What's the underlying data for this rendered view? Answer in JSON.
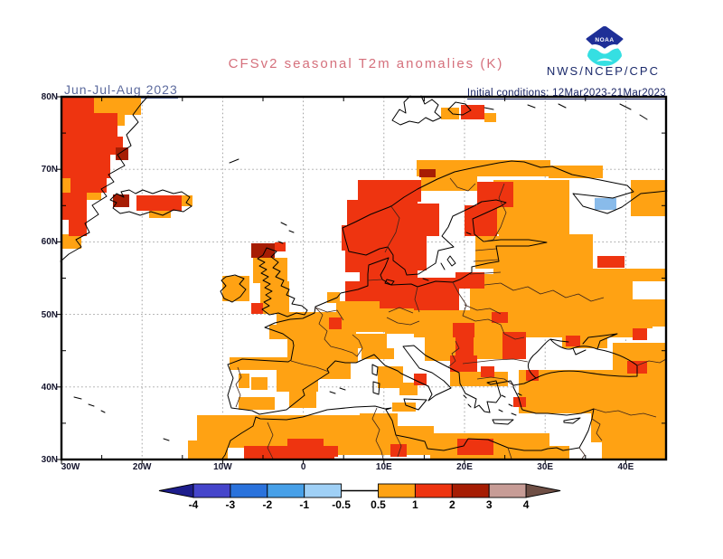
{
  "header": {
    "title": "CFSv2 seasonal T2m anomalies (K)",
    "period": "Jun-Jul-Aug 2023",
    "init_conditions": "Initial conditions: 12Mar2023-21Mar2023",
    "agency": "NWS/NCEP/CPC",
    "noaa_logo_text": "NOAA"
  },
  "map": {
    "lat_ticks": [
      {
        "label": "80N",
        "lat": 80
      },
      {
        "label": "70N",
        "lat": 70
      },
      {
        "label": "60N",
        "lat": 60
      },
      {
        "label": "50N",
        "lat": 50
      },
      {
        "label": "40N",
        "lat": 40
      },
      {
        "label": "30N",
        "lat": 30
      }
    ],
    "lon_ticks": [
      {
        "label": "30W",
        "lon": -30
      },
      {
        "label": "20W",
        "lon": -20
      },
      {
        "label": "10W",
        "lon": -10
      },
      {
        "label": "0",
        "lon": 0
      },
      {
        "label": "10E",
        "lon": 10
      },
      {
        "label": "20E",
        "lon": 20
      },
      {
        "label": "30E",
        "lon": 30
      },
      {
        "label": "40E",
        "lon": 40
      }
    ],
    "cells": [
      [
        "o",
        36,
        0,
        52,
        20
      ],
      [
        "o",
        54,
        20,
        16,
        12
      ],
      [
        "o",
        0,
        90,
        10,
        16
      ],
      [
        "o",
        28,
        104,
        16,
        10
      ],
      [
        "o",
        0,
        152,
        22,
        16
      ],
      [
        "o",
        130,
        109,
        15,
        12
      ],
      [
        "o",
        97,
        126,
        24,
        8
      ],
      [
        "o",
        420,
        12,
        20,
        13
      ],
      [
        "o",
        468,
        18,
        13,
        10
      ],
      [
        "o",
        393,
        70,
        148,
        18
      ],
      [
        "o",
        539,
        76,
        60,
        14
      ],
      [
        "o",
        398,
        88,
        62,
        16
      ],
      [
        "o",
        328,
        218,
        34,
        14
      ],
      [
        "o",
        478,
        92,
        84,
        60
      ],
      [
        "o",
        630,
        92,
        38,
        40
      ],
      [
        "o",
        458,
        154,
        28,
        36
      ],
      [
        "o",
        484,
        152,
        104,
        38
      ],
      [
        "o",
        600,
        190,
        68,
        14
      ],
      [
        "o",
        478,
        190,
        154,
        34
      ],
      [
        "o",
        630,
        224,
        38,
        30
      ],
      [
        "o",
        478,
        224,
        176,
        32
      ],
      [
        "o",
        452,
        196,
        28,
        58
      ],
      [
        "o",
        406,
        236,
        64,
        28
      ],
      [
        "o",
        294,
        216,
        14,
        12
      ],
      [
        "o",
        304,
        226,
        88,
        34
      ],
      [
        "o",
        212,
        178,
        38,
        28
      ],
      [
        "o",
        220,
        204,
        32,
        36
      ],
      [
        "o",
        178,
        198,
        30,
        28
      ],
      [
        "o",
        238,
        238,
        88,
        28
      ],
      [
        "o",
        230,
        252,
        22,
        16
      ],
      [
        "o",
        250,
        266,
        78,
        28
      ],
      [
        "o",
        260,
        294,
        60,
        18
      ],
      [
        "o",
        186,
        288,
        92,
        14
      ],
      [
        "o",
        238,
        298,
        46,
        28
      ],
      [
        "o",
        210,
        310,
        18,
        14
      ],
      [
        "o",
        196,
        306,
        12,
        16
      ],
      [
        "o",
        252,
        326,
        30,
        18
      ],
      [
        "o",
        196,
        332,
        40,
        14
      ],
      [
        "o",
        318,
        262,
        42,
        16
      ],
      [
        "o",
        332,
        278,
        36,
        12
      ],
      [
        "o",
        350,
        298,
        28,
        24
      ],
      [
        "o",
        374,
        316,
        20,
        14
      ],
      [
        "o",
        366,
        338,
        26,
        10
      ],
      [
        "o",
        358,
        230,
        50,
        32
      ],
      [
        "o",
        390,
        240,
        78,
        26
      ],
      [
        "o",
        466,
        222,
        166,
        44
      ],
      [
        "o",
        420,
        262,
        92,
        20
      ],
      [
        "o",
        402,
        264,
        58,
        28
      ],
      [
        "o",
        456,
        266,
        34,
        24
      ],
      [
        "o",
        430,
        304,
        64,
        16
      ],
      [
        "o",
        554,
        262,
        50,
        16
      ],
      [
        "o",
        610,
        272,
        58,
        38
      ],
      [
        "o",
        506,
        302,
        162,
        48
      ],
      [
        "o",
        586,
        344,
        82,
        38
      ],
      [
        "o",
        598,
        380,
        70,
        20
      ],
      [
        "o",
        538,
        386,
        24,
        14
      ],
      [
        "o",
        150,
        352,
        60,
        28
      ],
      [
        "o",
        140,
        380,
        44,
        20
      ],
      [
        "o",
        178,
        360,
        120,
        28
      ],
      [
        "o",
        206,
        352,
        124,
        26
      ],
      [
        "o",
        298,
        364,
        114,
        32
      ],
      [
        "o",
        330,
        350,
        42,
        22
      ],
      [
        "o",
        408,
        372,
        132,
        28
      ],
      [
        "r",
        0,
        0,
        36,
        18
      ],
      [
        "r",
        0,
        18,
        62,
        26
      ],
      [
        "r",
        0,
        44,
        68,
        20
      ],
      [
        "r",
        0,
        64,
        54,
        26
      ],
      [
        "r",
        10,
        88,
        40,
        18
      ],
      [
        "r",
        0,
        106,
        28,
        30
      ],
      [
        "r",
        8,
        136,
        20,
        18
      ],
      [
        "r",
        83,
        109,
        50,
        17
      ],
      [
        "r",
        442,
        9,
        26,
        16
      ],
      [
        "r",
        328,
        92,
        70,
        24
      ],
      [
        "r",
        316,
        114,
        78,
        28
      ],
      [
        "r",
        310,
        142,
        66,
        28
      ],
      [
        "r",
        314,
        168,
        58,
        26
      ],
      [
        "r",
        330,
        194,
        42,
        22
      ],
      [
        "r",
        370,
        118,
        48,
        36
      ],
      [
        "r",
        364,
        152,
        40,
        40
      ],
      [
        "r",
        352,
        192,
        42,
        28
      ],
      [
        "r",
        352,
        208,
        40,
        26
      ],
      [
        "r",
        460,
        94,
        40,
        28
      ],
      [
        "r",
        446,
        120,
        36,
        34
      ],
      [
        "r",
        593,
        176,
        30,
        13
      ],
      [
        "r",
        436,
        194,
        32,
        18
      ],
      [
        "r",
        390,
        200,
        50,
        36
      ],
      [
        "r",
        476,
        238,
        18,
        12
      ],
      [
        "r",
        314,
        204,
        78,
        22
      ],
      [
        "r",
        236,
        161,
        12,
        10
      ],
      [
        "r",
        210,
        228,
        13,
        12
      ],
      [
        "r",
        296,
        244,
        14,
        13
      ],
      [
        "r",
        390,
        306,
        14,
        13
      ],
      [
        "r",
        433,
        250,
        24,
        16
      ],
      [
        "r",
        436,
        266,
        20,
        30
      ],
      [
        "r",
        488,
        260,
        26,
        30
      ],
      [
        "r",
        430,
        286,
        30,
        18
      ],
      [
        "r",
        464,
        298,
        15,
        12
      ],
      [
        "r",
        500,
        332,
        14,
        11
      ],
      [
        "r",
        558,
        264,
        16,
        12
      ],
      [
        "r",
        632,
        256,
        16,
        13
      ],
      [
        "r",
        626,
        292,
        22,
        14
      ],
      [
        "r",
        514,
        302,
        14,
        12
      ],
      [
        "r",
        202,
        386,
        100,
        14
      ],
      [
        "r",
        250,
        378,
        40,
        10
      ],
      [
        "r",
        282,
        386,
        24,
        12
      ],
      [
        "r",
        364,
        384,
        18,
        14
      ],
      [
        "r",
        438,
        378,
        40,
        18
      ],
      [
        "d",
        60,
        56,
        14,
        14
      ],
      [
        "d",
        57,
        108,
        18,
        14
      ],
      [
        "d",
        210,
        162,
        26,
        16
      ],
      [
        "d",
        396,
        80,
        18,
        9
      ],
      [
        "b",
        590,
        112,
        24,
        13
      ]
    ]
  },
  "colorbar": {
    "labels": [
      "-4",
      "-3",
      "-2",
      "-1",
      "-0.5",
      "0.5",
      "1",
      "2",
      "3",
      "4"
    ],
    "block_colors": [
      "#4545cb",
      "#2a72dc",
      "#47a0e8",
      "#9fd0f6",
      "#ffffff",
      "#ffa213",
      "#ee3410",
      "#a61d04",
      "#c79c96"
    ],
    "arrow_left_color": "#1d1d8c",
    "arrow_right_color": "#6f4f45"
  },
  "palette": {
    "o": "#ffa213",
    "r": "#ee3410",
    "d": "#a61d04",
    "b": "#89bbea"
  }
}
